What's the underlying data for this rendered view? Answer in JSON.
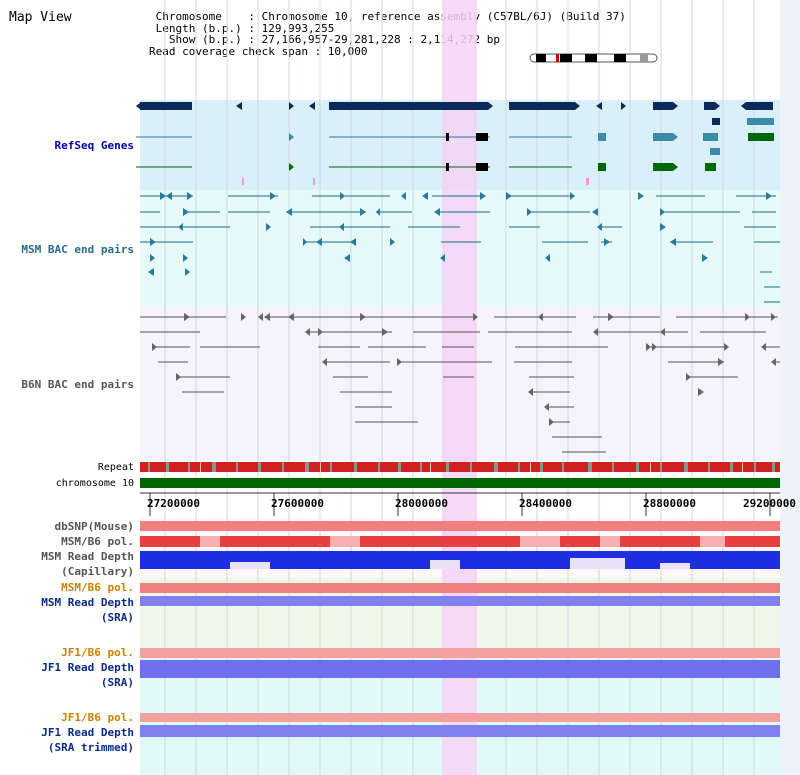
{
  "header": {
    "title": "Map View",
    "info_lines": [
      " Chromosome    : Chromosome 10, reference assembly (C57BL/6J) (Build 37)",
      " Length (b.p.) : 129,993,255",
      "   Show (b.p.) : 27,166,957-29,281,228 : 2,114,272 bp",
      "Read coverage check span : 10,000"
    ]
  },
  "tracks": {
    "refseq": "RefSeq Genes",
    "msm_bac": "MSM BAC end pairs",
    "b6n_bac": "B6N BAC end pairs",
    "repeat": "Repeat",
    "chromosome": "chromosome 10",
    "dbsnp": "dbSNP(Mouse)",
    "msm_b6_pol_1": "MSM/B6 pol.",
    "msm_depth_cap_1": "MSM Read Depth",
    "msm_depth_cap_2": "(Capillary)",
    "msm_b6_pol_2": "MSM/B6 pol.",
    "msm_depth_sra_1": "MSM Read Depth",
    "msm_depth_sra_2": "(SRA)",
    "jf1_b6_pol_1": "JF1/B6 pol.",
    "jf1_depth_sra_1": "JF1 Read Depth",
    "jf1_depth_sra_2": "(SRA)",
    "jf1_b6_pol_2": "JF1/B6 pol.",
    "jf1_depth_trim_1": "JF1 Read Depth",
    "jf1_depth_trim_2": "(SRA trimmed)"
  },
  "axis": {
    "ticks": [
      "27200000",
      "27600000",
      "28000000",
      "28400000",
      "28800000",
      "29200000"
    ]
  },
  "colors": {
    "refseq_bg": "#d9effa",
    "bac_bg": "#e6fafa",
    "highlight": "#f6d4f6",
    "gene": "#0a2a5a",
    "chrom": "#006600"
  }
}
